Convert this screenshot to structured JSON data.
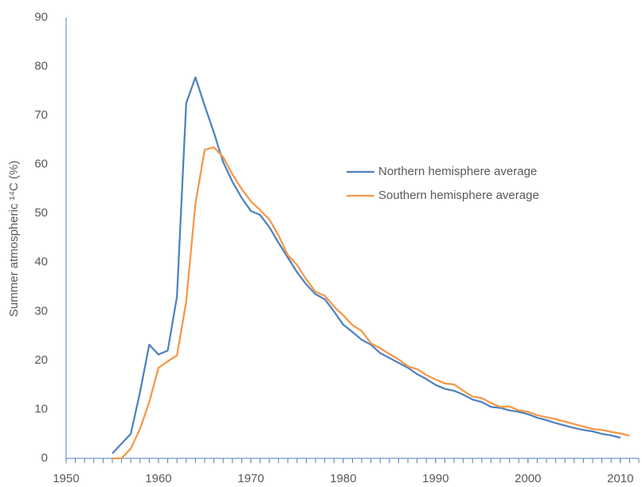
{
  "chart_data": {
    "type": "line",
    "ylabel": "Summer atmospheric ¹⁴C (%)",
    "xlim": [
      1950,
      2012
    ],
    "xticks": [
      1950,
      1960,
      1970,
      1980,
      1990,
      2000,
      2010
    ],
    "xminorticks": [
      1951,
      1952,
      1953,
      1954,
      1955,
      1956,
      1957,
      1958,
      1959,
      1960,
      1961,
      1962,
      1963,
      1964,
      1965,
      1966,
      1967,
      1968,
      1969,
      1970,
      1971,
      1972,
      1973,
      1974,
      1975,
      1976,
      1977,
      1978,
      1979,
      1980,
      1981,
      1982,
      1983,
      1984,
      1985,
      1986,
      1987,
      1988,
      1989,
      1990,
      1991,
      1992,
      1993,
      1994,
      1995,
      1996,
      1997,
      1998,
      1999,
      2000,
      2001,
      2002,
      2003,
      2004,
      2005,
      2006,
      2007,
      2008,
      2009,
      2010,
      2011,
      2012
    ],
    "ylim": [
      0,
      90
    ],
    "yticks": [
      0,
      10,
      20,
      30,
      40,
      50,
      60,
      70,
      80,
      90
    ],
    "grid": false,
    "series": [
      {
        "name": "Northern hemisphere average",
        "color": "#4f81bd",
        "x": [
          1955,
          1956,
          1957,
          1958,
          1959,
          1960,
          1961,
          1962,
          1963,
          1964,
          1965,
          1966,
          1967,
          1968,
          1969,
          1970,
          1971,
          1972,
          1973,
          1974,
          1975,
          1976,
          1977,
          1978,
          1979,
          1980,
          1981,
          1982,
          1983,
          1984,
          1985,
          1986,
          1987,
          1988,
          1989,
          1990,
          1991,
          1992,
          1993,
          1994,
          1995,
          1996,
          1997,
          1998,
          1999,
          2000,
          2001,
          2002,
          2003,
          2004,
          2005,
          2006,
          2007,
          2008,
          2009,
          2010
        ],
        "values": [
          1,
          3,
          5,
          13.5,
          23.2,
          21.2,
          22,
          33,
          72.5,
          77.8,
          72,
          66.5,
          60.5,
          56.5,
          53.2,
          50.5,
          49.7,
          47.2,
          44,
          41,
          38,
          35.5,
          33.5,
          32.5,
          30,
          27.3,
          25.8,
          24.2,
          23.2,
          21.5,
          20.5,
          19.5,
          18.5,
          17.2,
          16.2,
          15,
          14.2,
          13.8,
          13,
          12,
          11.5,
          10.5,
          10.3,
          9.8,
          9.5,
          9,
          8.3,
          7.8,
          7.2,
          6.7,
          6.2,
          5.8,
          5.5,
          5,
          4.7,
          4.2
        ]
      },
      {
        "name": "Southern hemisphere average",
        "color": "#f79646",
        "x": [
          1955,
          1956,
          1957,
          1958,
          1959,
          1960,
          1961,
          1962,
          1963,
          1964,
          1965,
          1966,
          1967,
          1968,
          1969,
          1970,
          1971,
          1972,
          1973,
          1974,
          1975,
          1976,
          1977,
          1978,
          1979,
          1980,
          1981,
          1982,
          1983,
          1984,
          1985,
          1986,
          1987,
          1988,
          1989,
          1990,
          1991,
          1992,
          1993,
          1994,
          1995,
          1996,
          1997,
          1998,
          1999,
          2000,
          2001,
          2002,
          2003,
          2004,
          2005,
          2006,
          2007,
          2008,
          2009,
          2010,
          2011
        ],
        "values": [
          0,
          0,
          2,
          6,
          11.5,
          18.5,
          19.8,
          21,
          32,
          52,
          63,
          63.5,
          61.5,
          58,
          55,
          52.5,
          50.7,
          48.8,
          45.5,
          41.5,
          39.5,
          36.5,
          34,
          33.2,
          31,
          29.2,
          27.2,
          26,
          23.5,
          22.5,
          21.3,
          20.2,
          18.8,
          18.2,
          17,
          16.1,
          15.3,
          15.1,
          13.8,
          12.6,
          12.3,
          11.3,
          10.5,
          10.6,
          9.8,
          9.5,
          8.8,
          8.4,
          8,
          7.5,
          7,
          6.5,
          6,
          5.8,
          5.4,
          5.1,
          4.6
        ]
      }
    ]
  }
}
